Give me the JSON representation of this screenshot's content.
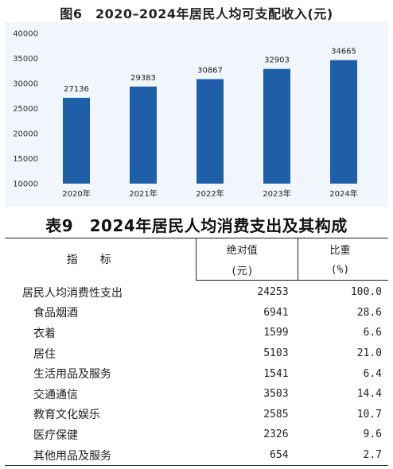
{
  "chart_title": "图6　2020–2024年居民人均可支配收入(元)",
  "chart_data": {
    "type": "bar",
    "title": "2020–2024年居民人均可支配收入(元)",
    "categories": [
      "2020年",
      "2021年",
      "2022年",
      "2023年",
      "2024年"
    ],
    "values": [
      27136,
      29383,
      30867,
      32903,
      34665
    ],
    "data_labels": [
      "27136",
      "29383",
      "30867",
      "32903",
      "34665"
    ],
    "ylim": [
      10000,
      40000
    ],
    "yticks": [
      "10000",
      "15000",
      "20000",
      "25000",
      "30000",
      "35000",
      "40000"
    ],
    "bar_color": "#1f5fa8",
    "background_color": "#f1f6fc",
    "grid": false,
    "legend": "none"
  },
  "table": {
    "title": "表9　2024年居民人均消费支出及其构成",
    "headers": {
      "col1": "指标",
      "col2_line1": "绝对值",
      "col2_line2": "(元)",
      "col3_line1": "比重",
      "col3_line2": "(%)"
    },
    "rows": [
      {
        "label": "居民人均消费性支出",
        "value": "24253",
        "share": "100.0",
        "indent": false
      },
      {
        "label": "食品烟酒",
        "value": "6941",
        "share": "28.6",
        "indent": true
      },
      {
        "label": "衣着",
        "value": "1599",
        "share": "6.6",
        "indent": true
      },
      {
        "label": "居住",
        "value": "5103",
        "share": "21.0",
        "indent": true
      },
      {
        "label": "生活用品及服务",
        "value": "1541",
        "share": "6.4",
        "indent": true
      },
      {
        "label": "交通通信",
        "value": "3503",
        "share": "14.4",
        "indent": true
      },
      {
        "label": "教育文化娱乐",
        "value": "2585",
        "share": "10.7",
        "indent": true
      },
      {
        "label": "医疗保健",
        "value": "2326",
        "share": "9.6",
        "indent": true
      },
      {
        "label": "其他用品及服务",
        "value": "654",
        "share": "2.7",
        "indent": true
      }
    ]
  }
}
